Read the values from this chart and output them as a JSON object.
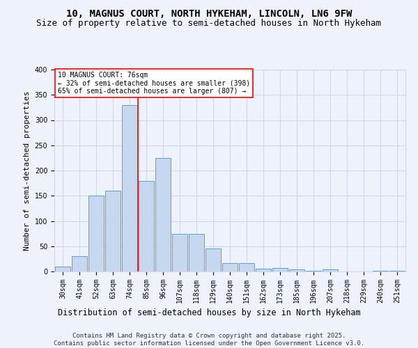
{
  "title1": "10, MAGNUS COURT, NORTH HYKEHAM, LINCOLN, LN6 9FW",
  "title2": "Size of property relative to semi-detached houses in North Hykeham",
  "xlabel": "Distribution of semi-detached houses by size in North Hykeham",
  "ylabel": "Number of semi-detached properties",
  "categories": [
    "30sqm",
    "41sqm",
    "52sqm",
    "63sqm",
    "74sqm",
    "85sqm",
    "96sqm",
    "107sqm",
    "118sqm",
    "129sqm",
    "140sqm",
    "151sqm",
    "162sqm",
    "173sqm",
    "185sqm",
    "196sqm",
    "207sqm",
    "218sqm",
    "229sqm",
    "240sqm",
    "251sqm"
  ],
  "values": [
    10,
    30,
    150,
    160,
    330,
    180,
    225,
    75,
    75,
    46,
    17,
    16,
    6,
    7,
    4,
    2,
    4,
    0,
    0,
    1,
    2
  ],
  "bar_color": "#c5d8f0",
  "bar_edge_color": "#5a9fd4",
  "grid_color": "#d0d8e8",
  "background_color": "#eef2fb",
  "vline_x": 4.5,
  "vline_color": "red",
  "annotation_text": "10 MAGNUS COURT: 76sqm\n← 32% of semi-detached houses are smaller (398)\n65% of semi-detached houses are larger (807) →",
  "annotation_box_color": "white",
  "annotation_box_edge": "red",
  "footer_text": "Contains HM Land Registry data © Crown copyright and database right 2025.\nContains public sector information licensed under the Open Government Licence v3.0.",
  "ylim": [
    0,
    400
  ],
  "yticks": [
    0,
    50,
    100,
    150,
    200,
    250,
    300,
    350,
    400
  ],
  "title1_fontsize": 10,
  "title2_fontsize": 9,
  "xlabel_fontsize": 8.5,
  "ylabel_fontsize": 8,
  "tick_fontsize": 7,
  "footer_fontsize": 6.5
}
